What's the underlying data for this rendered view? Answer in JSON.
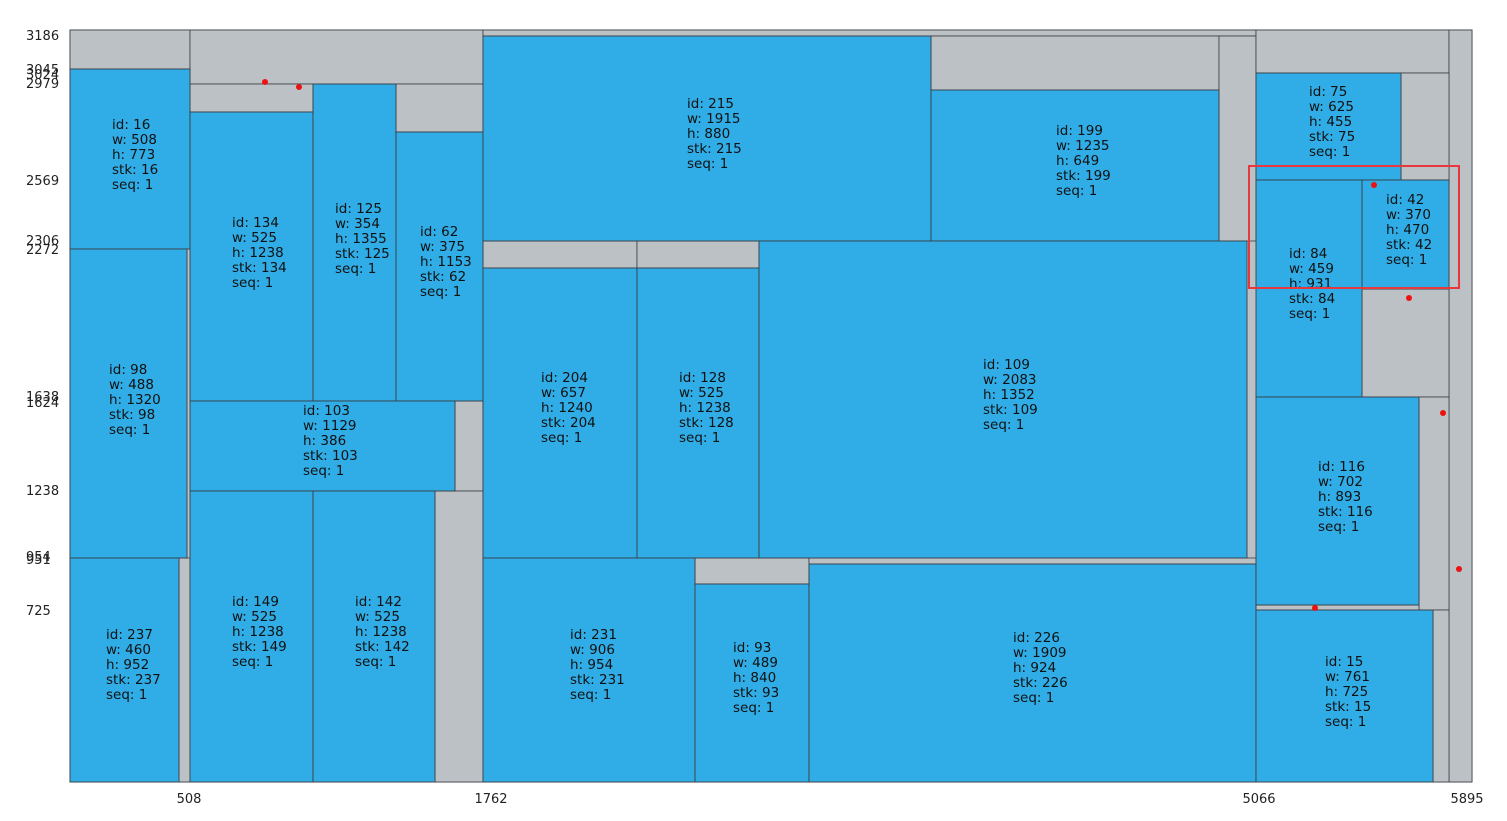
{
  "colors": {
    "bin_fill": "#bcc1c6",
    "box_fill": "#30ade6",
    "stroke": "#3a3f44",
    "marker": "#ee1111",
    "highlight": "#e8383d"
  },
  "y_axis_labels": [
    "3186",
    "3045",
    "3024",
    "2979",
    "2569",
    "2306",
    "2272",
    "1638",
    "1624",
    "1238",
    "954",
    "951",
    "725"
  ],
  "x_axis_labels": [
    "508",
    "1762",
    "5066",
    "5895"
  ],
  "boxes": [
    {
      "id": "16",
      "w": "508",
      "h": "773",
      "stk": "16",
      "seq": "1"
    },
    {
      "id": "98",
      "w": "488",
      "h": "1320",
      "stk": "98",
      "seq": "1"
    },
    {
      "id": "237",
      "w": "460",
      "h": "952",
      "stk": "237",
      "seq": "1"
    },
    {
      "id": "134",
      "w": "525",
      "h": "1238",
      "stk": "134",
      "seq": "1"
    },
    {
      "id": "125",
      "w": "354",
      "h": "1355",
      "stk": "125",
      "seq": "1"
    },
    {
      "id": "62",
      "w": "375",
      "h": "1153",
      "stk": "62",
      "seq": "1"
    },
    {
      "id": "103",
      "w": "1129",
      "h": "386",
      "stk": "103",
      "seq": "1"
    },
    {
      "id": "149",
      "w": "525",
      "h": "1238",
      "stk": "149",
      "seq": "1"
    },
    {
      "id": "142",
      "w": "525",
      "h": "1238",
      "stk": "142",
      "seq": "1"
    },
    {
      "id": "215",
      "w": "1915",
      "h": "880",
      "stk": "215",
      "seq": "1"
    },
    {
      "id": "199",
      "w": "1235",
      "h": "649",
      "stk": "199",
      "seq": "1"
    },
    {
      "id": "204",
      "w": "657",
      "h": "1240",
      "stk": "204",
      "seq": "1"
    },
    {
      "id": "128",
      "w": "525",
      "h": "1238",
      "stk": "128",
      "seq": "1"
    },
    {
      "id": "109",
      "w": "2083",
      "h": "1352",
      "stk": "109",
      "seq": "1"
    },
    {
      "id": "231",
      "w": "906",
      "h": "954",
      "stk": "231",
      "seq": "1"
    },
    {
      "id": "93",
      "w": "489",
      "h": "840",
      "stk": "93",
      "seq": "1"
    },
    {
      "id": "226",
      "w": "1909",
      "h": "924",
      "stk": "226",
      "seq": "1"
    },
    {
      "id": "75",
      "w": "625",
      "h": "455",
      "stk": "75",
      "seq": "1"
    },
    {
      "id": "42",
      "w": "370",
      "h": "470",
      "stk": "42",
      "seq": "1"
    },
    {
      "id": "84",
      "w": "459",
      "h": "931",
      "stk": "84",
      "seq": "1"
    },
    {
      "id": "116",
      "w": "702",
      "h": "893",
      "stk": "116",
      "seq": "1"
    },
    {
      "id": "15",
      "w": "761",
      "h": "725",
      "stk": "15",
      "seq": "1"
    }
  ]
}
